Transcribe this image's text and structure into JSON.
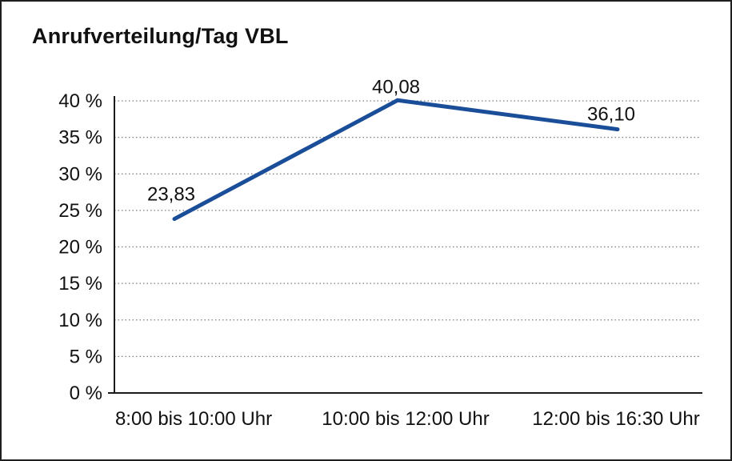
{
  "chart_data": {
    "type": "line",
    "title": "Anrufverteilung/Tag VBL",
    "categories": [
      "8:00 bis 10:00 Uhr",
      "10:00 bis 12:00 Uhr",
      "12:00 bis 16:30 Uhr"
    ],
    "values": [
      23.83,
      40.08,
      36.1
    ],
    "value_labels": [
      "23,83",
      "40,08",
      "36,10"
    ],
    "y_tick_values": [
      0,
      5,
      10,
      15,
      20,
      25,
      30,
      35,
      40
    ],
    "y_tick_labels": [
      "0 %",
      "5 %",
      "10 %",
      "15 %",
      "20 %",
      "25 %",
      "30 %",
      "35 %",
      "40 %"
    ],
    "xlabel": "",
    "ylabel": "",
    "ylim": [
      0,
      40
    ],
    "grid": "horizontal-dotted",
    "legend": "none",
    "colors": {
      "line": "#1b4e99",
      "grid": "#7a7a7a",
      "axis": "#1a1a1a",
      "text": "#111111",
      "background": "#ffffff",
      "border": "#1f1f1f"
    }
  }
}
